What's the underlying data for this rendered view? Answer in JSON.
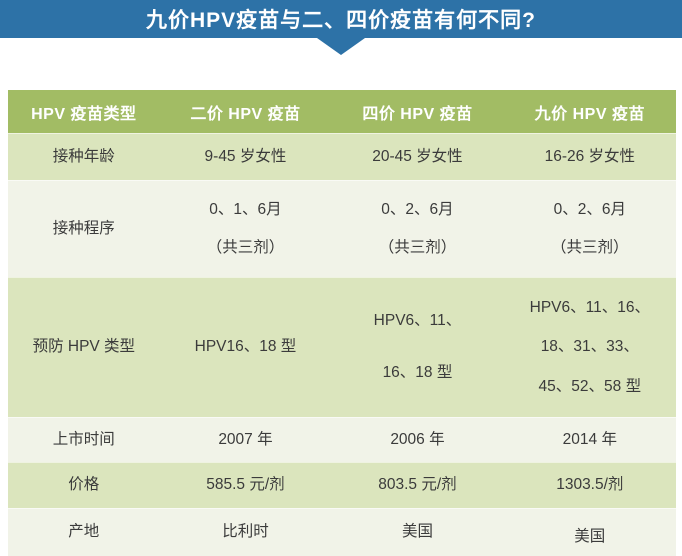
{
  "banner": {
    "title": "九价HPV疫苗与二、四价疫苗有何不同?"
  },
  "colors": {
    "banner_blue": "#2d72a7",
    "header_green": "#a2bc64",
    "row_green": "#dbe5bd",
    "row_light": "#f1f3e8",
    "text_dark": "#3b3b3b"
  },
  "chart_data": {
    "type": "table",
    "title": "九价HPV疫苗与二、四价疫苗有何不同?",
    "columns": [
      "HPV 疫苗类型",
      "二价 HPV 疫苗",
      "四价 HPV 疫苗",
      "九价 HPV 疫苗"
    ],
    "rows": [
      {
        "label": "接种年龄",
        "cells": [
          [
            "9-45 岁女性"
          ],
          [
            "20-45 岁女性"
          ],
          [
            "16-26 岁女性"
          ]
        ]
      },
      {
        "label": "接种程序",
        "cells": [
          [
            "0、1、6月",
            "（共三剂）"
          ],
          [
            "0、2、6月",
            "（共三剂）"
          ],
          [
            "0、2、6月",
            "（共三剂）"
          ]
        ]
      },
      {
        "label": "预防 HPV 类型",
        "cells": [
          [
            "HPV16、18 型"
          ],
          [
            "HPV6、11、",
            "16、18 型"
          ],
          [
            "HPV6、11、16、",
            "18、31、33、",
            "45、52、58 型"
          ]
        ]
      },
      {
        "label": "上市时间",
        "cells": [
          [
            "2007 年"
          ],
          [
            "2006 年"
          ],
          [
            "2014 年"
          ]
        ]
      },
      {
        "label": "价格",
        "cells": [
          [
            "585.5 元/剂"
          ],
          [
            "803.5 元/剂"
          ],
          [
            "1303.5/剂"
          ]
        ]
      },
      {
        "label": "产地",
        "cells": [
          [
            "比利时"
          ],
          [
            "美国"
          ],
          [
            "美国"
          ]
        ]
      }
    ]
  }
}
